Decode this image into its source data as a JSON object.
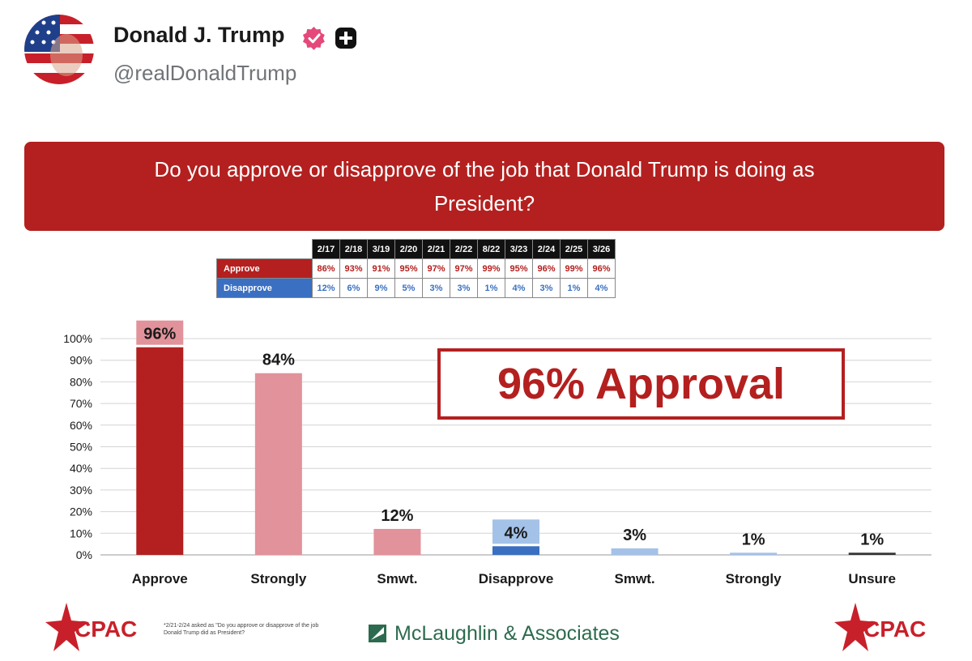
{
  "post": {
    "author_name": "Donald J. Trump",
    "handle": "@realDonaldTrump"
  },
  "slide": {
    "question_line1": "Do you approve or disapprove of the job that Donald Trump is doing as",
    "question_line2": "President?",
    "approval_callout": "96% Approval",
    "footnote": "*2/21-2/24 asked as \"Do you approve or disapprove of the job Donald Trump did as President?",
    "pollster": "McLaughlin & Associates",
    "brand": "CPAC",
    "history_table": {
      "dates": [
        "2/17",
        "2/18",
        "3/19",
        "2/20",
        "2/21",
        "2/22",
        "8/22",
        "3/23",
        "2/24",
        "2/25",
        "3/26"
      ],
      "rows": [
        {
          "label": "Approve",
          "values": [
            "86%",
            "93%",
            "91%",
            "95%",
            "97%",
            "97%",
            "99%",
            "95%",
            "96%",
            "99%",
            "96%"
          ]
        },
        {
          "label": "Disapprove",
          "values": [
            "12%",
            "6%",
            "9%",
            "5%",
            "3%",
            "3%",
            "1%",
            "4%",
            "3%",
            "1%",
            "4%"
          ]
        }
      ]
    }
  },
  "colors": {
    "approve_red": "#b3201f",
    "light_red": "#e1929a",
    "blue": "#3a6fc2",
    "light_blue": "#a4c2e8",
    "pollster_green": "#2d6b4e"
  },
  "icons": {
    "verified": "verified-badge-icon",
    "plus": "plus-badge-icon",
    "pollster": "mclaughlin-logo-icon",
    "cpac": "cpac-star-logo"
  },
  "chart_data": {
    "type": "bar",
    "categories": [
      "Approve",
      "Strongly",
      "Smwt.",
      "Disapprove",
      "Smwt.",
      "Strongly",
      "Unsure"
    ],
    "values": [
      96,
      84,
      12,
      4,
      3,
      1,
      1
    ],
    "value_labels": [
      "96%",
      "84%",
      "12%",
      "4%",
      "3%",
      "1%",
      "1%"
    ],
    "bar_colors": [
      "#b3201f",
      "#e1929a",
      "#e1929a",
      "#3a6fc2",
      "#a4c2e8",
      "#a4c2e8",
      "#333333"
    ],
    "highlight_labels": [
      0,
      3
    ],
    "ylim": [
      0,
      100
    ],
    "yticks": [
      "0%",
      "10%",
      "20%",
      "30%",
      "40%",
      "50%",
      "60%",
      "70%",
      "80%",
      "90%",
      "100%"
    ],
    "grid": true
  }
}
